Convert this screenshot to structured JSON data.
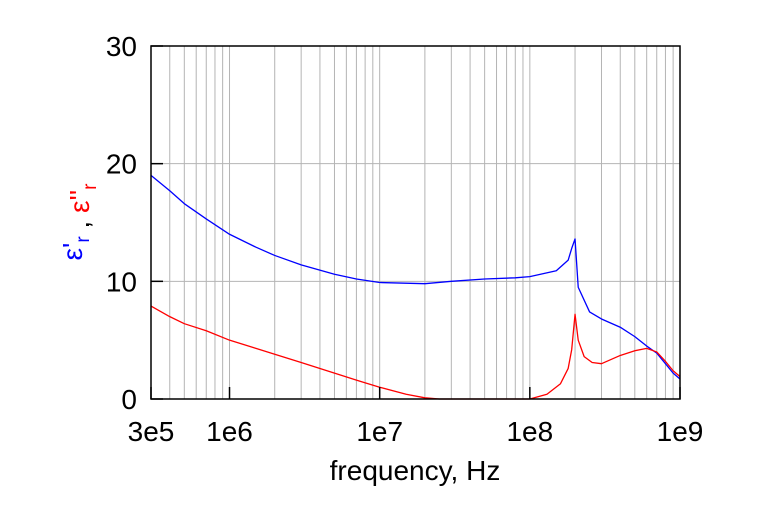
{
  "chart_data": {
    "type": "line",
    "title": "",
    "xlabel": "frequency, Hz",
    "ylabel_parts": [
      {
        "text": "ε",
        "color_key": "blue"
      },
      {
        "text": "'",
        "color_key": "blue"
      },
      {
        "text": "r",
        "color_key": "blue",
        "sub": true
      },
      {
        "text": " , ",
        "color_key": "black"
      },
      {
        "text": "ε",
        "color_key": "red"
      },
      {
        "text": "''",
        "color_key": "red"
      },
      {
        "text": "r",
        "color_key": "red",
        "sub": true
      }
    ],
    "x_scale": "log",
    "xlim": [
      300000,
      1000000000
    ],
    "ylim": [
      0,
      30
    ],
    "x_ticks": [
      {
        "value": 300000,
        "label": "3e5"
      },
      {
        "value": 1000000,
        "label": "1e6"
      },
      {
        "value": 10000000,
        "label": "1e7"
      },
      {
        "value": 100000000,
        "label": "1e8"
      },
      {
        "value": 1000000000,
        "label": "1e9"
      }
    ],
    "y_ticks": [
      {
        "value": 0,
        "label": "0"
      },
      {
        "value": 10,
        "label": "10"
      },
      {
        "value": 20,
        "label": "20"
      },
      {
        "value": 30,
        "label": "30"
      }
    ],
    "grid": true,
    "colors": {
      "blue": "#0000ff",
      "red": "#ff0000",
      "black": "#000000"
    },
    "series": [
      {
        "color_key": "blue",
        "x": [
          300000,
          400000,
          500000,
          700000,
          1000000,
          1500000,
          2000000,
          3000000,
          5000000,
          7000000,
          10000000,
          20000000,
          30000000,
          50000000,
          80000000,
          100000000,
          150000000,
          180000000,
          190000000,
          200000000,
          210000000,
          250000000,
          300000000,
          400000000,
          500000000,
          600000000,
          700000000,
          800000000,
          900000000,
          1000000000
        ],
        "y": [
          19,
          17.7,
          16.6,
          15.3,
          14,
          12.9,
          12.2,
          11.4,
          10.6,
          10.2,
          9.9,
          9.8,
          10.0,
          10.2,
          10.3,
          10.4,
          10.9,
          11.8,
          12.8,
          13.6,
          9.5,
          7.4,
          6.8,
          6.1,
          5.3,
          4.5,
          3.9,
          3.0,
          2.2,
          1.7
        ]
      },
      {
        "color_key": "red",
        "x": [
          300000,
          400000,
          500000,
          700000,
          1000000,
          1500000,
          2000000,
          3000000,
          5000000,
          7000000,
          10000000,
          15000000,
          20000000,
          25000000,
          100000000,
          130000000,
          160000000,
          180000000,
          190000000,
          200000000,
          210000000,
          230000000,
          260000000,
          300000000,
          400000000,
          500000000,
          600000000,
          700000000,
          800000000,
          900000000,
          1000000000
        ],
        "y": [
          7.9,
          7.0,
          6.4,
          5.8,
          5.0,
          4.3,
          3.8,
          3.1,
          2.2,
          1.6,
          1.0,
          0.4,
          0.1,
          0,
          0,
          0.4,
          1.3,
          2.6,
          4.2,
          7.2,
          5.0,
          3.6,
          3.1,
          3.0,
          3.7,
          4.1,
          4.3,
          4.0,
          3.2,
          2.4,
          1.9
        ]
      }
    ]
  }
}
